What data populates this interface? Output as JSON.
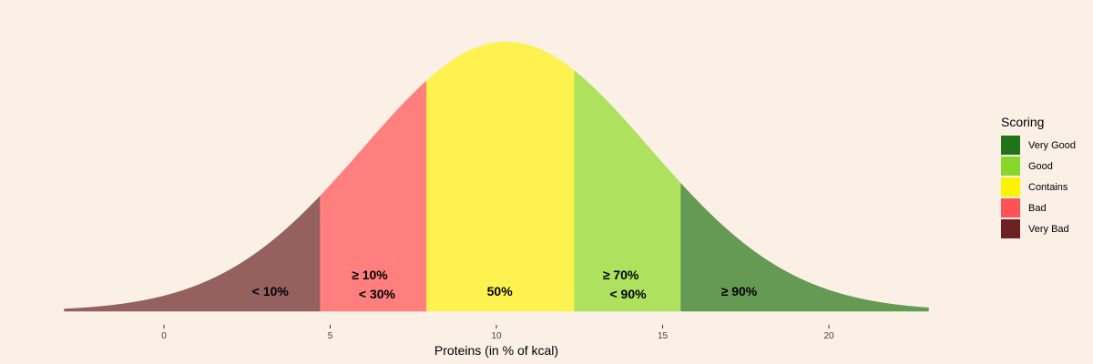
{
  "chart_data": {
    "type": "area",
    "distribution": {
      "mean": 10.3,
      "sd": 4.3
    },
    "x_range": [
      -3,
      23
    ],
    "xlabel": "Proteins (in % of kcal)",
    "x_ticks": [
      0,
      5,
      10,
      15,
      20
    ],
    "zones": [
      {
        "from": -3,
        "to": 4.7,
        "color": "#946060",
        "label_lines": [
          "< 10%"
        ],
        "label_x": 3.2
      },
      {
        "from": 4.7,
        "to": 7.9,
        "color": "#ff7f7f",
        "label_lines": [
          "≥ 10%",
          "< 30%"
        ],
        "label_x": 6.3
      },
      {
        "from": 7.9,
        "to": 12.35,
        "color": "#fdf24f",
        "label_lines": [
          "50%"
        ],
        "label_x": 10.1
      },
      {
        "from": 12.35,
        "to": 15.55,
        "color": "#ade15e",
        "label_lines": [
          "≥ 70%",
          "< 90%"
        ],
        "label_x": 13.85
      },
      {
        "from": 15.55,
        "to": 23,
        "color": "#659a54",
        "label_lines": [
          "≥ 90%"
        ],
        "label_x": 17.3
      }
    ],
    "legend": {
      "title": "Scoring",
      "items": [
        {
          "label": "Very Good",
          "color": "#207319"
        },
        {
          "label": "Good",
          "color": "#87d82a"
        },
        {
          "label": "Contains",
          "color": "#fef200"
        },
        {
          "label": "Bad",
          "color": "#ff5254"
        },
        {
          "label": "Very Bad",
          "color": "#6e2123"
        }
      ]
    },
    "grid": false,
    "legend_position": "right"
  }
}
